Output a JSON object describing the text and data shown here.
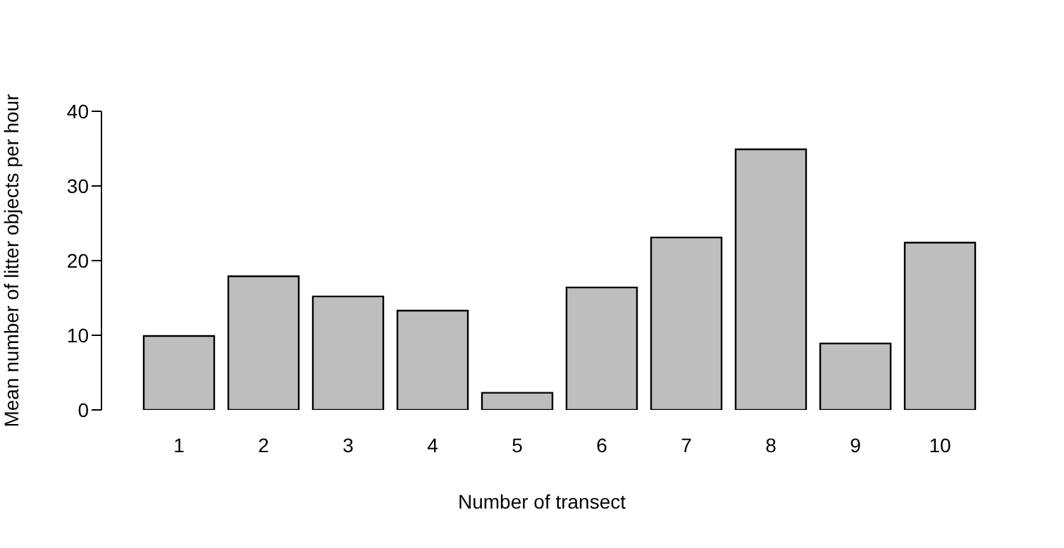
{
  "chart_data": {
    "type": "bar",
    "xlabel": "Number of transect",
    "ylabel": "Mean number of litter objects per hour",
    "categories": [
      "1",
      "2",
      "3",
      "4",
      "5",
      "6",
      "7",
      "8",
      "9",
      "10"
    ],
    "values": [
      9.9,
      17.9,
      15.2,
      13.3,
      2.3,
      16.4,
      23.1,
      34.9,
      8.9,
      22.4
    ],
    "color": "#bebebe",
    "ylim": [
      0,
      40
    ],
    "yticks": [
      0,
      10,
      20,
      30,
      40
    ],
    "grid": false,
    "legend": false
  }
}
